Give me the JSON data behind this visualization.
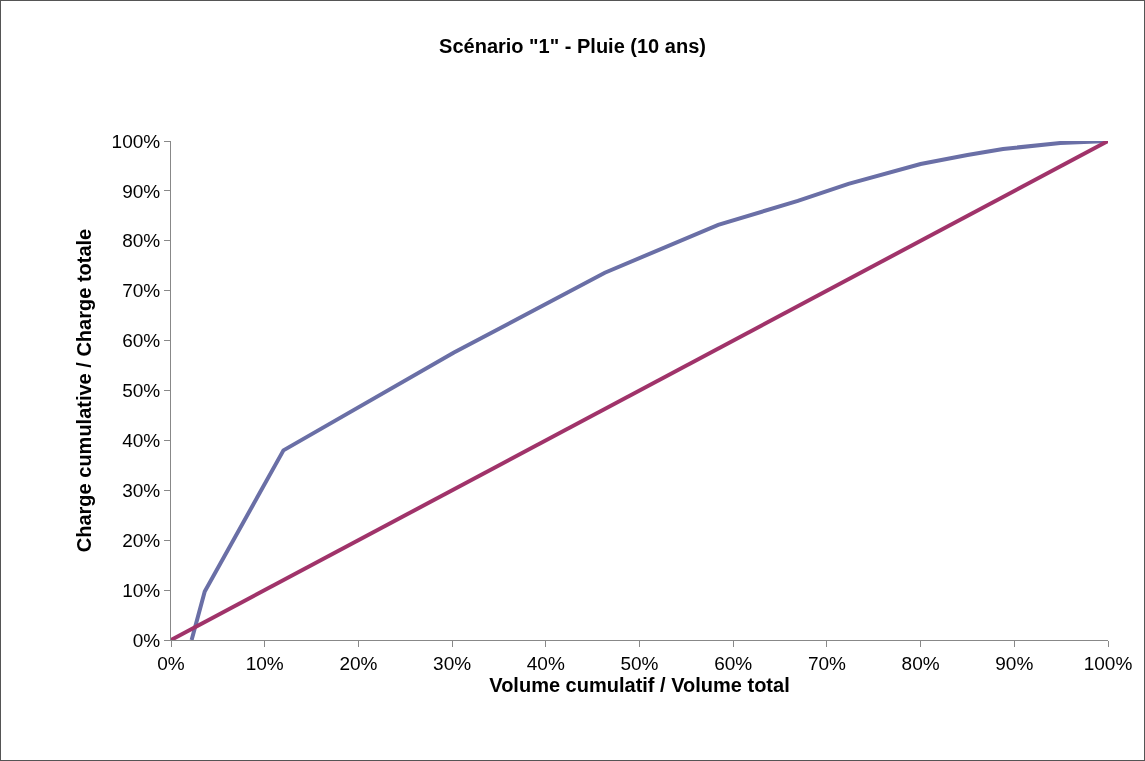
{
  "chart_data": {
    "type": "line",
    "title": "Scénario \"1\" - Pluie (10 ans)",
    "xlabel": "Volume cumulatif / Volume total",
    "ylabel": "Charge cumulative / Charge totale",
    "series": [
      {
        "color": "#6a6fa6",
        "x": [
          2.2,
          3.6,
          12.0,
          30.2,
          46.3,
          58.4,
          66.9,
          72.3,
          80.0,
          85.0,
          88.8,
          94.9,
          100
        ],
        "values": [
          0,
          9.7,
          38.0,
          57.6,
          73.6,
          83.2,
          88.0,
          91.4,
          95.4,
          97.2,
          98.4,
          99.6,
          100
        ]
      },
      {
        "color": "#a0336a",
        "x": [
          0,
          100
        ],
        "values": [
          0,
          100
        ]
      }
    ],
    "xlim": [
      0,
      100
    ],
    "ylim": [
      0,
      100
    ],
    "xticks": [
      {
        "value": 0,
        "label": "0%"
      },
      {
        "value": 10,
        "label": "10%"
      },
      {
        "value": 20,
        "label": "20%"
      },
      {
        "value": 30,
        "label": "30%"
      },
      {
        "value": 40,
        "label": "40%"
      },
      {
        "value": 50,
        "label": "50%"
      },
      {
        "value": 60,
        "label": "60%"
      },
      {
        "value": 70,
        "label": "70%"
      },
      {
        "value": 80,
        "label": "80%"
      },
      {
        "value": 90,
        "label": "90%"
      },
      {
        "value": 100,
        "label": "100%"
      }
    ],
    "yticks": [
      {
        "value": 0,
        "label": "0%"
      },
      {
        "value": 10,
        "label": "10%"
      },
      {
        "value": 20,
        "label": "20%"
      },
      {
        "value": 30,
        "label": "30%"
      },
      {
        "value": 40,
        "label": "40%"
      },
      {
        "value": 50,
        "label": "50%"
      },
      {
        "value": 60,
        "label": "60%"
      },
      {
        "value": 70,
        "label": "70%"
      },
      {
        "value": 80,
        "label": "80%"
      },
      {
        "value": 90,
        "label": "90%"
      },
      {
        "value": 100,
        "label": "100%"
      }
    ],
    "grid": false,
    "marker": "none",
    "line_style": "solid"
  }
}
